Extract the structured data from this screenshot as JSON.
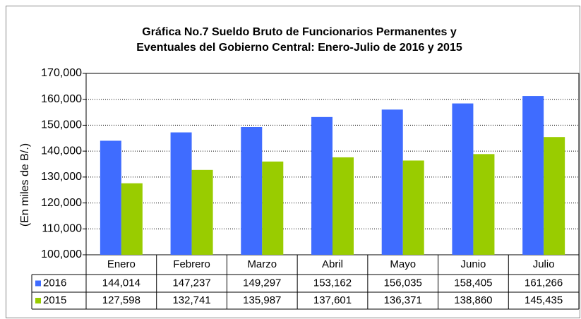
{
  "chart_data": {
    "type": "bar",
    "title": [
      "Gráfica No.7 Sueldo Bruto de Funcionarios Permanentes y",
      "Eventuales del Gobierno Central: Enero-Julio de 2016 y 2015"
    ],
    "y_label": "(En miles de B/.)",
    "categories": [
      "Enero",
      "Febrero",
      "Marzo",
      "Abril",
      "Mayo",
      "Junio",
      "Julio"
    ],
    "series": [
      {
        "name": "2016",
        "color": "#3f6cff",
        "values": [
          144014,
          147237,
          149297,
          153162,
          156035,
          158405,
          161266
        ],
        "value_labels": [
          "144,014",
          "147,237",
          "149,297",
          "153,162",
          "156,035",
          "158,405",
          "161,266"
        ]
      },
      {
        "name": "2015",
        "color": "#99cc00",
        "values": [
          127598,
          132741,
          135987,
          137601,
          136371,
          138860,
          145435
        ],
        "value_labels": [
          "127,598",
          "132,741",
          "135,987",
          "137,601",
          "136,371",
          "138,860",
          "145,435"
        ]
      }
    ],
    "ylim": [
      100000,
      170000
    ],
    "yticks": [
      {
        "value": 100000,
        "label": "100,000"
      },
      {
        "value": 110000,
        "label": "110,000"
      },
      {
        "value": 120000,
        "label": "120,000"
      },
      {
        "value": 130000,
        "label": "130,000"
      },
      {
        "value": 140000,
        "label": "140,000"
      },
      {
        "value": 150000,
        "label": "150,000"
      },
      {
        "value": 160000,
        "label": "160,000"
      },
      {
        "value": 170000,
        "label": "170,000"
      }
    ],
    "grid": true
  }
}
